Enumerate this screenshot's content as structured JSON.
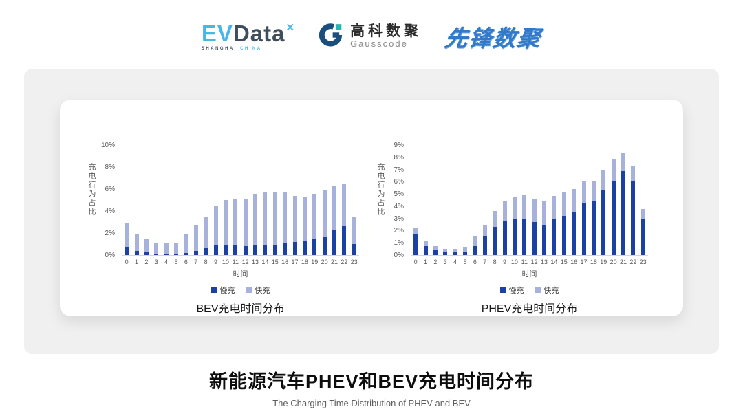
{
  "header": {
    "evdata": {
      "ev": "EV",
      "data": "Data",
      "mark": "✕",
      "sub1": "SHANGHAI",
      "sub2": "CHINA"
    },
    "gausscode": {
      "cn": "高科数聚",
      "en": "Gausscode",
      "mark_color": "#1a4f7d",
      "accent_color": "#2ab3b3"
    },
    "xianfeng": {
      "text": "先锋数聚",
      "color": "#3279c9"
    }
  },
  "footer": {
    "title": "新能源汽车PHEV和BEV充电时间分布",
    "subtitle": "The Charging Time Distribution of PHEV and BEV"
  },
  "colors": {
    "slow": "#1c41a5",
    "fast": "#a6b1dc",
    "axis_line": "#d6d6d6",
    "tick_text": "#595959",
    "band_bg": "#f0f0f1"
  },
  "chart_data": [
    {
      "type": "bar",
      "stacked": true,
      "title": "BEV充电时间分布",
      "xlabel": "时间",
      "ylabel": "充电行为占比",
      "ylim": [
        0,
        10
      ],
      "ytick_step": 2,
      "ytick_suffix": "%",
      "grid": false,
      "legend_position": "bottom",
      "categories": [
        "0",
        "1",
        "2",
        "3",
        "4",
        "5",
        "6",
        "7",
        "8",
        "9",
        "10",
        "11",
        "12",
        "13",
        "14",
        "15",
        "16",
        "17",
        "18",
        "19",
        "20",
        "21",
        "22",
        "23"
      ],
      "series": [
        {
          "name": "慢充",
          "color": "#1c41a5",
          "values": [
            0.75,
            0.4,
            0.25,
            0.15,
            0.12,
            0.12,
            0.2,
            0.4,
            0.7,
            0.85,
            0.9,
            0.9,
            0.8,
            0.85,
            0.9,
            0.95,
            1.1,
            1.2,
            1.3,
            1.45,
            1.6,
            2.3,
            2.6,
            1.0
          ]
        },
        {
          "name": "快充",
          "color": "#a6b1dc",
          "values": [
            2.15,
            1.5,
            1.25,
            1.0,
            0.93,
            1.03,
            1.7,
            2.35,
            2.8,
            3.65,
            4.1,
            4.2,
            4.3,
            4.7,
            4.8,
            4.75,
            4.65,
            4.2,
            3.95,
            4.1,
            4.25,
            4.0,
            3.9,
            2.5
          ]
        }
      ]
    },
    {
      "type": "bar",
      "stacked": true,
      "title": "PHEV充电时间分布",
      "xlabel": "时间",
      "ylabel": "充电行为占比",
      "ylim": [
        0,
        9
      ],
      "ytick_step": 1,
      "ytick_suffix": "%",
      "grid": false,
      "legend_position": "bottom",
      "categories": [
        "0",
        "1",
        "2",
        "3",
        "4",
        "5",
        "6",
        "7",
        "8",
        "9",
        "10",
        "11",
        "12",
        "13",
        "14",
        "15",
        "16",
        "17",
        "18",
        "19",
        "20",
        "21",
        "22",
        "23"
      ],
      "series": [
        {
          "name": "慢充",
          "color": "#1c41a5",
          "values": [
            1.7,
            0.75,
            0.45,
            0.25,
            0.25,
            0.3,
            0.75,
            1.6,
            2.3,
            2.8,
            2.95,
            2.9,
            2.7,
            2.5,
            3.0,
            3.2,
            3.5,
            4.3,
            4.45,
            5.3,
            6.1,
            6.85,
            6.05,
            2.95
          ]
        },
        {
          "name": "快充",
          "color": "#a6b1dc",
          "values": [
            0.5,
            0.4,
            0.3,
            0.25,
            0.25,
            0.35,
            0.8,
            0.8,
            1.3,
            1.65,
            1.8,
            2.0,
            1.85,
            1.9,
            1.85,
            1.95,
            1.9,
            1.7,
            1.55,
            1.6,
            1.7,
            1.45,
            1.25,
            0.8
          ]
        }
      ]
    }
  ]
}
